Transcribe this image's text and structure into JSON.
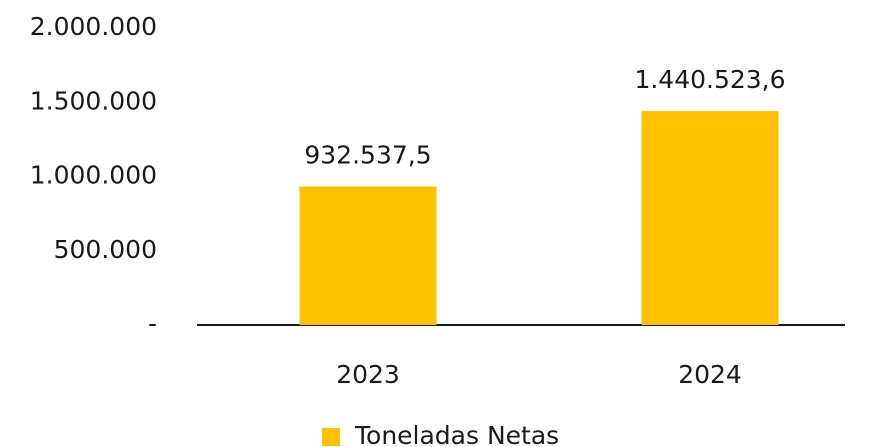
{
  "chart_data": {
    "type": "bar",
    "categories": [
      "2023",
      "2024"
    ],
    "series": [
      {
        "name": "Toneladas Netas",
        "color": "#FFC000",
        "values": [
          932537.5,
          1440523.6
        ],
        "value_labels": [
          "932.537,5",
          "1.440.523,6"
        ]
      }
    ],
    "ylim": [
      0,
      2000000
    ],
    "yticks": [
      {
        "value": 0,
        "label": "-"
      },
      {
        "value": 500000,
        "label": "500.000"
      },
      {
        "value": 1000000,
        "label": "1.000.000"
      },
      {
        "value": 1500000,
        "label": "1.500.000"
      },
      {
        "value": 2000000,
        "label": "2.000.000"
      }
    ],
    "grid": false,
    "legend": "bottom"
  }
}
